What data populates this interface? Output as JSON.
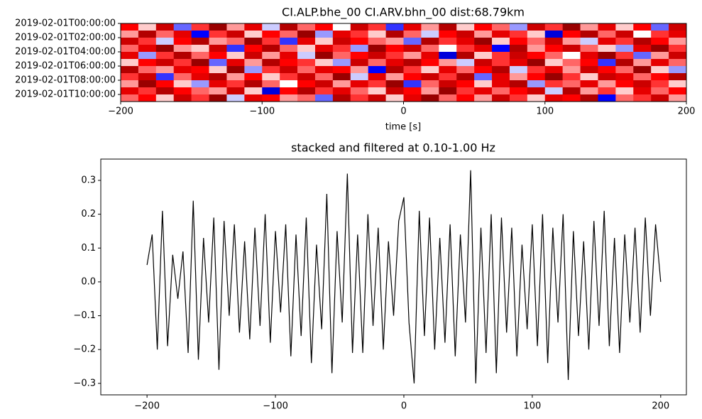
{
  "chart_data": [
    {
      "type": "heatmap",
      "title": "CI.ALP.bhe_00 CI.ARV.bhn_00  dist:68.79km",
      "xlabel": "time [s]",
      "xlim": [
        -200,
        200
      ],
      "xticks": [
        {
          "value": -200,
          "label": "−200"
        },
        {
          "value": -100,
          "label": "−100"
        },
        0,
        100,
        200
      ],
      "ylim": [
        0,
        11
      ],
      "yticks": [
        {
          "value": 0,
          "label": "2019-02-01T00:00:00"
        },
        {
          "value": 2,
          "label": "2019-02-01T02:00:00"
        },
        {
          "value": 4,
          "label": "2019-02-01T04:00:00"
        },
        {
          "value": 6,
          "label": "2019-02-01T06:00:00"
        },
        {
          "value": 8,
          "label": "2019-02-01T08:00:00"
        },
        {
          "value": 10,
          "label": "2019-02-01T10:00:00"
        }
      ],
      "colormap": "seismic",
      "clim": [
        -1,
        1
      ],
      "z": [
        [
          0.5,
          0.1,
          0.7,
          -0.3,
          0.4,
          0.9,
          0.2,
          0.6,
          -0.1,
          0.8,
          0.3,
          0.5,
          0.0,
          0.7,
          0.4,
          -0.4,
          0.6,
          0.2,
          0.8,
          0.1,
          0.5,
          0.3,
          -0.2,
          0.7,
          0.4,
          0.9,
          0.2,
          0.6,
          0.1,
          0.5,
          -0.3,
          0.7
        ],
        [
          0.2,
          0.8,
          0.3,
          0.6,
          -0.5,
          0.4,
          0.7,
          0.1,
          0.5,
          0.3,
          0.9,
          -0.2,
          0.6,
          0.4,
          0.1,
          0.8,
          0.3,
          -0.1,
          0.5,
          0.7,
          0.2,
          0.6,
          0.4,
          0.1,
          -0.6,
          0.5,
          0.8,
          0.3,
          0.7,
          0.0,
          0.4,
          0.6
        ],
        [
          0.7,
          0.4,
          -0.1,
          0.5,
          0.8,
          0.2,
          0.3,
          0.9,
          0.4,
          -0.4,
          0.6,
          0.1,
          0.7,
          0.5,
          0.3,
          0.2,
          -0.3,
          0.8,
          0.4,
          0.6,
          0.9,
          0.1,
          0.5,
          0.3,
          0.7,
          0.2,
          -0.1,
          0.6,
          0.4,
          0.8,
          0.5,
          0.2
        ],
        [
          0.3,
          0.6,
          0.9,
          0.2,
          0.1,
          0.7,
          -0.4,
          0.5,
          0.8,
          0.3,
          0.1,
          0.6,
          0.4,
          -0.2,
          0.9,
          0.5,
          0.7,
          0.3,
          0.0,
          0.4,
          0.6,
          -0.5,
          0.8,
          0.2,
          0.5,
          0.7,
          0.3,
          0.1,
          -0.2,
          0.6,
          0.9,
          0.4
        ],
        [
          0.6,
          -0.2,
          0.4,
          0.8,
          0.3,
          0.5,
          0.1,
          0.7,
          0.2,
          0.6,
          -0.1,
          0.9,
          0.3,
          0.5,
          0.7,
          0.4,
          0.2,
          0.6,
          -0.6,
          0.8,
          0.1,
          0.4,
          0.7,
          0.5,
          0.3,
          0.0,
          0.6,
          0.9,
          0.4,
          -0.3,
          0.2,
          0.7
        ],
        [
          0.1,
          0.5,
          0.7,
          0.4,
          0.9,
          -0.3,
          0.6,
          0.2,
          0.8,
          0.5,
          0.4,
          0.1,
          -0.2,
          0.7,
          0.3,
          0.6,
          0.8,
          0.5,
          0.2,
          -0.1,
          0.7,
          0.4,
          0.6,
          0.9,
          0.1,
          0.3,
          0.5,
          -0.4,
          0.8,
          0.2,
          0.6,
          0.3
        ],
        [
          0.8,
          0.3,
          0.2,
          0.6,
          0.5,
          0.1,
          0.9,
          -0.2,
          0.4,
          0.7,
          0.3,
          0.6,
          0.5,
          0.2,
          -0.5,
          0.8,
          0.4,
          0.1,
          0.6,
          0.3,
          0.5,
          0.8,
          -0.1,
          0.4,
          0.6,
          0.2,
          0.7,
          0.5,
          0.3,
          0.9,
          0.1,
          -0.2
        ],
        [
          0.4,
          0.7,
          -0.4,
          0.3,
          0.6,
          0.8,
          0.2,
          0.5,
          0.1,
          0.4,
          0.7,
          0.3,
          0.9,
          -0.1,
          0.6,
          0.2,
          0.5,
          0.7,
          0.4,
          0.8,
          -0.3,
          0.6,
          0.2,
          0.5,
          0.9,
          0.4,
          0.1,
          0.7,
          0.6,
          0.3,
          0.5,
          0.8
        ],
        [
          0.2,
          0.9,
          0.5,
          0.1,
          -0.2,
          0.6,
          0.4,
          0.8,
          0.3,
          0.0,
          0.5,
          0.7,
          0.2,
          0.6,
          0.4,
          0.9,
          -0.4,
          0.3,
          0.7,
          0.5,
          0.1,
          0.6,
          0.8,
          -0.2,
          0.4,
          0.3,
          0.6,
          0.2,
          0.5,
          0.7,
          0.4,
          0.1
        ],
        [
          0.6,
          0.4,
          0.8,
          0.5,
          0.3,
          0.2,
          0.7,
          0.1,
          -0.6,
          0.5,
          0.8,
          0.4,
          0.6,
          0.3,
          0.1,
          0.7,
          0.5,
          0.2,
          0.9,
          0.4,
          0.6,
          0.3,
          0.5,
          0.7,
          -0.1,
          0.8,
          0.2,
          0.4,
          0.1,
          0.6,
          0.3,
          0.5
        ],
        [
          0.3,
          0.5,
          0.1,
          0.7,
          0.4,
          0.9,
          -0.1,
          0.6,
          0.5,
          0.2,
          0.3,
          -0.3,
          0.8,
          0.4,
          0.7,
          0.1,
          0.6,
          0.9,
          0.3,
          0.5,
          0.2,
          0.7,
          0.4,
          0.1,
          0.6,
          0.5,
          0.8,
          -0.5,
          0.3,
          0.4,
          0.7,
          0.2
        ]
      ]
    },
    {
      "type": "line",
      "title": "stacked and filtered at 0.10-1.00 Hz",
      "color": "#000000",
      "xlim": [
        -236,
        220
      ],
      "xticks": [
        {
          "value": -200,
          "label": "−200"
        },
        {
          "value": -100,
          "label": "−100"
        },
        0,
        100,
        200
      ],
      "ylim": [
        -0.334,
        0.363
      ],
      "yticks": [
        {
          "value": -0.3,
          "label": "−0.3"
        },
        {
          "value": -0.2,
          "label": "−0.2"
        },
        {
          "value": -0.1,
          "label": "−0.1"
        },
        {
          "value": 0,
          "label": "0.0"
        },
        0.1,
        0.2,
        0.3
      ],
      "x": [
        -200,
        -196,
        -192,
        -188,
        -184,
        -180,
        -176,
        -172,
        -168,
        -164,
        -160,
        -156,
        -152,
        -148,
        -144,
        -140,
        -136,
        -132,
        -128,
        -124,
        -120,
        -116,
        -112,
        -108,
        -104,
        -100,
        -96,
        -92,
        -88,
        -84,
        -80,
        -76,
        -72,
        -68,
        -64,
        -60,
        -56,
        -52,
        -48,
        -44,
        -40,
        -36,
        -32,
        -28,
        -24,
        -20,
        -16,
        -12,
        -8,
        -4,
        0,
        4,
        8,
        12,
        16,
        20,
        24,
        28,
        32,
        36,
        40,
        44,
        48,
        52,
        56,
        60,
        64,
        68,
        72,
        76,
        80,
        84,
        88,
        92,
        96,
        100,
        104,
        108,
        112,
        116,
        120,
        124,
        128,
        132,
        136,
        140,
        144,
        148,
        152,
        156,
        160,
        164,
        168,
        172,
        176,
        180,
        184,
        188,
        192,
        196,
        200
      ],
      "values": [
        0.05,
        0.14,
        -0.2,
        0.21,
        -0.19,
        0.08,
        -0.05,
        0.09,
        -0.21,
        0.24,
        -0.23,
        0.13,
        -0.12,
        0.19,
        -0.26,
        0.18,
        -0.1,
        0.17,
        -0.15,
        0.12,
        -0.17,
        0.16,
        -0.13,
        0.2,
        -0.18,
        0.15,
        -0.09,
        0.17,
        -0.22,
        0.14,
        -0.16,
        0.19,
        -0.24,
        0.11,
        -0.14,
        0.26,
        -0.27,
        0.15,
        -0.12,
        0.32,
        -0.21,
        0.14,
        -0.21,
        0.2,
        -0.13,
        0.16,
        -0.2,
        0.12,
        -0.1,
        0.18,
        0.25,
        -0.12,
        -0.3,
        0.21,
        -0.16,
        0.19,
        -0.2,
        0.13,
        -0.18,
        0.17,
        -0.22,
        0.14,
        -0.12,
        0.33,
        -0.3,
        0.16,
        -0.21,
        0.2,
        -0.27,
        0.19,
        -0.15,
        0.16,
        -0.22,
        0.11,
        -0.14,
        0.17,
        -0.19,
        0.2,
        -0.24,
        0.16,
        -0.12,
        0.2,
        -0.29,
        0.15,
        -0.16,
        0.12,
        -0.2,
        0.18,
        -0.13,
        0.21,
        -0.19,
        0.13,
        -0.21,
        0.14,
        -0.12,
        0.16,
        -0.15,
        0.19,
        -0.1,
        0.17,
        0.0
      ]
    }
  ]
}
